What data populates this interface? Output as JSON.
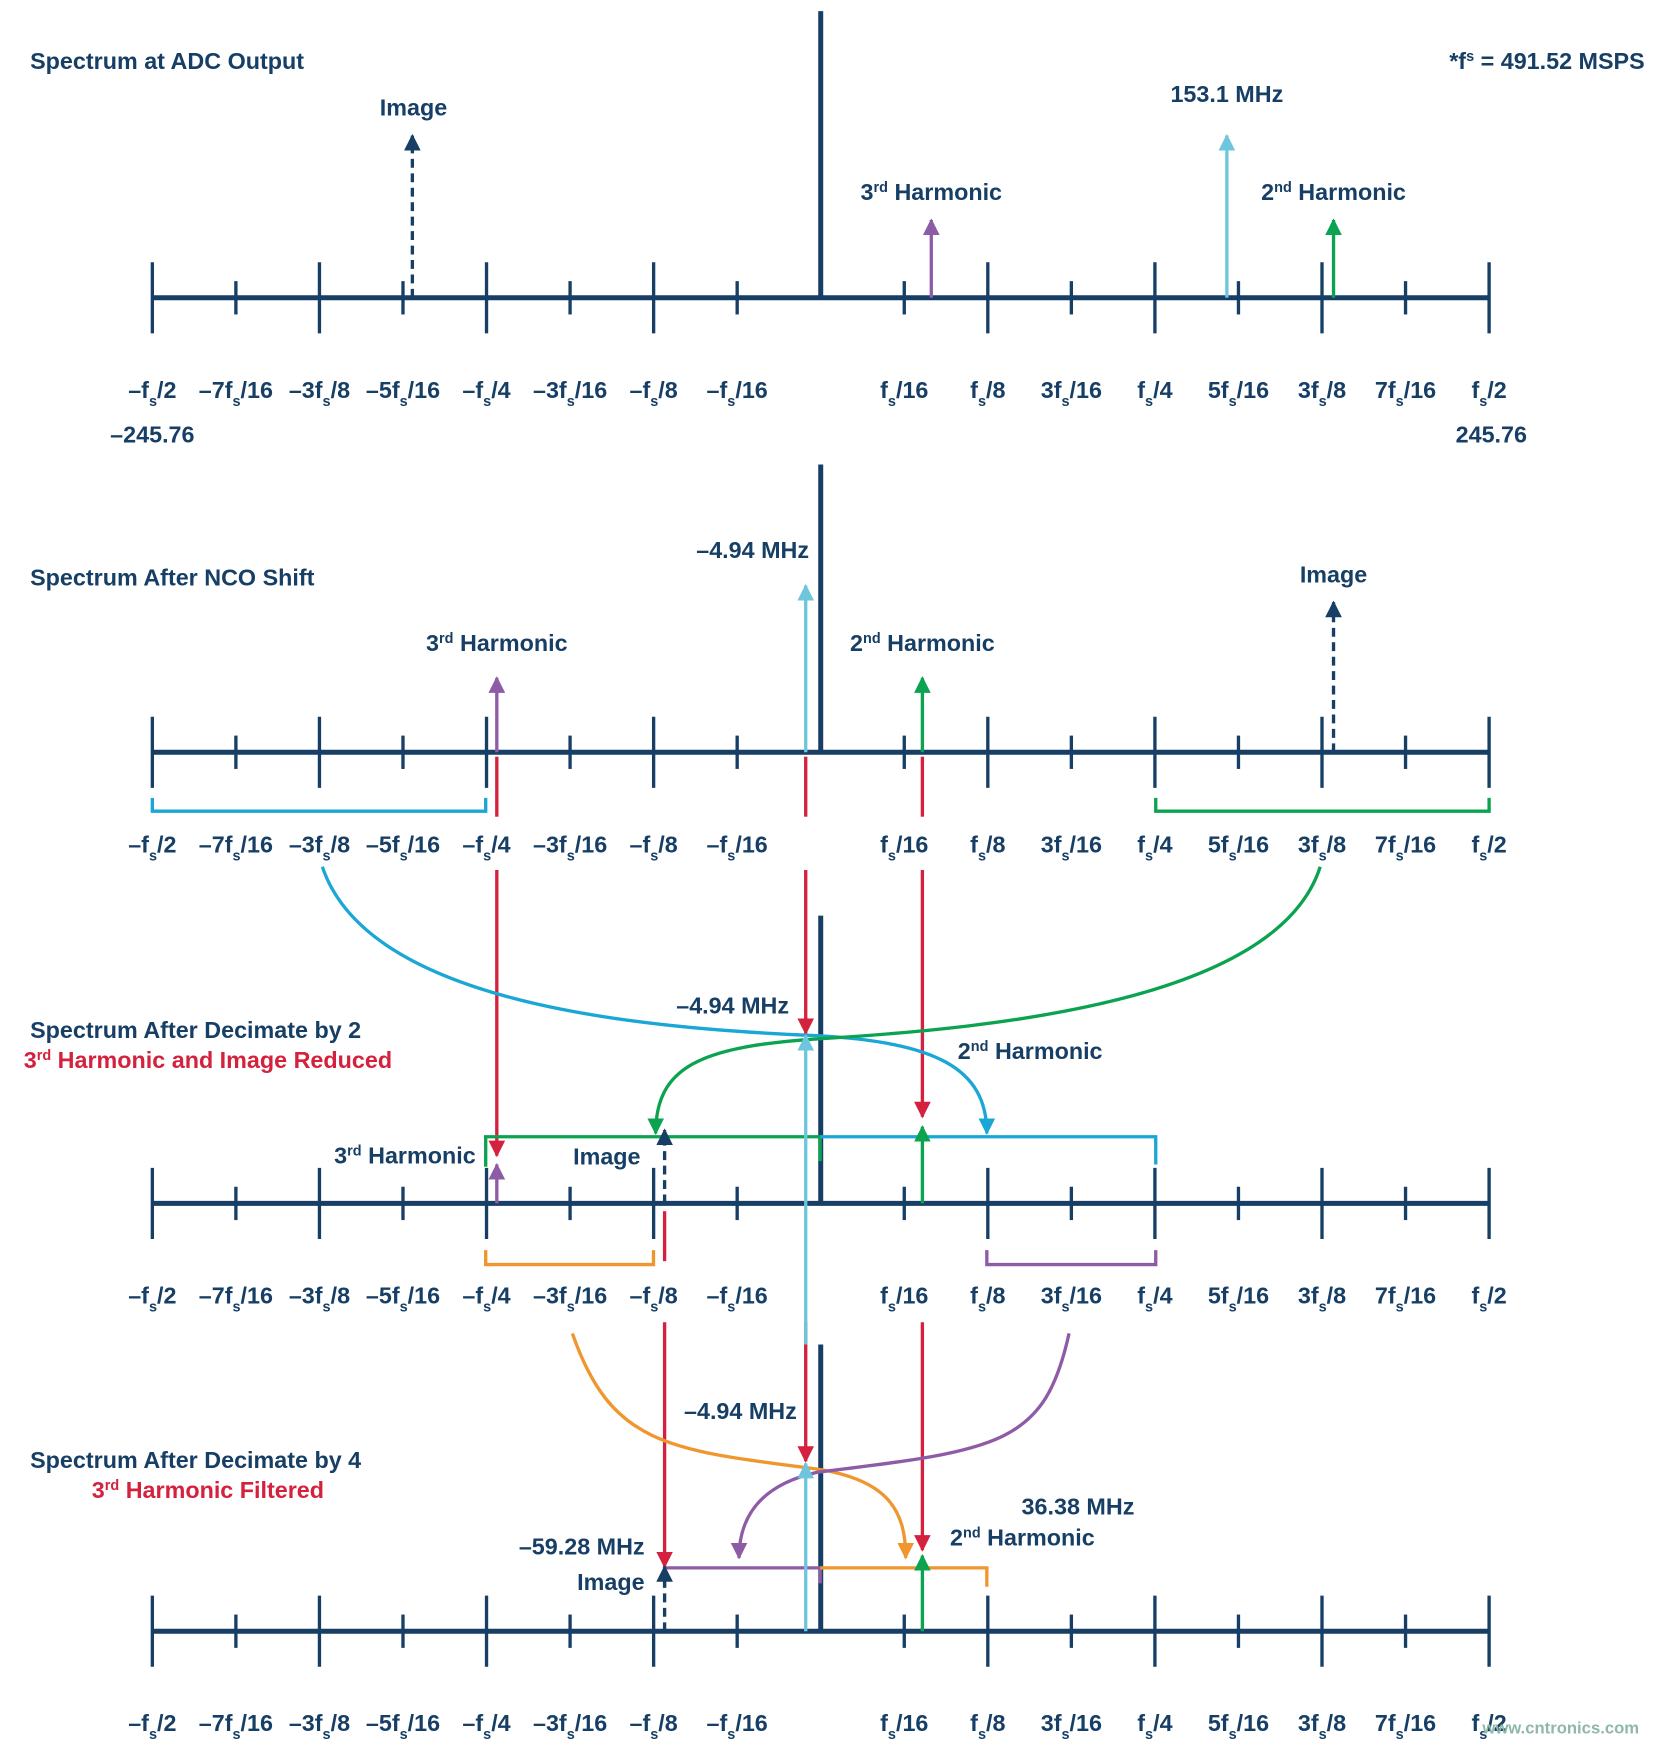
{
  "note": [
    "*f",
    "s",
    " = 491.52 MSPS"
  ],
  "axis_labels": [
    [
      "–f",
      "s",
      "/2"
    ],
    [
      "–7f",
      "s",
      "/16"
    ],
    [
      "–3f",
      "s",
      "/8"
    ],
    [
      "–5f",
      "s",
      "/16"
    ],
    [
      "–f",
      "s",
      "/4"
    ],
    [
      "–3f",
      "s",
      "/16"
    ],
    [
      "–f",
      "s",
      "/8"
    ],
    [
      "–f",
      "s",
      "/16"
    ],
    [
      "f",
      "s",
      "/16"
    ],
    [
      "f",
      "s",
      "/8"
    ],
    [
      "3f",
      "s",
      "/16"
    ],
    [
      "f",
      "s",
      "/4"
    ],
    [
      "5f",
      "s",
      "/16"
    ],
    [
      "3f",
      "s",
      "/8"
    ],
    [
      "7f",
      "s",
      "/16"
    ],
    [
      "f",
      "s",
      "/2"
    ]
  ],
  "panels": [
    {
      "title": "Spectrum at ADC Output",
      "image": "Image",
      "signal": "153.1 MHz",
      "third": [
        "3",
        "rd",
        " Harmonic"
      ],
      "second": [
        "2",
        "nd",
        " Harmonic"
      ],
      "min": "–245.76",
      "max": "245.76"
    },
    {
      "title": "Spectrum After NCO Shift",
      "signal": "–4.94 MHz",
      "image": "Image",
      "third": [
        "3",
        "rd",
        " Harmonic"
      ],
      "second": [
        "2",
        "nd",
        " Harmonic"
      ]
    },
    {
      "title": "Spectrum After Decimate by 2",
      "subtitle": [
        "3",
        "rd",
        " Harmonic and Image Reduced"
      ],
      "signal": "–4.94 MHz",
      "second": [
        "2",
        "nd",
        " Harmonic"
      ],
      "third": [
        "3",
        "rd",
        " Harmonic"
      ],
      "image": "Image"
    },
    {
      "title": "Spectrum After Decimate by 4",
      "subtitle": [
        "3",
        "rd",
        " Harmonic Filtered"
      ],
      "signal": "–4.94 MHz",
      "second_freq": "36.38 MHz",
      "second": [
        "2",
        "nd",
        " Harmonic"
      ],
      "image_freq": "–59.28 MHz",
      "image": "Image"
    }
  ],
  "watermark": "www.cntronics.com"
}
